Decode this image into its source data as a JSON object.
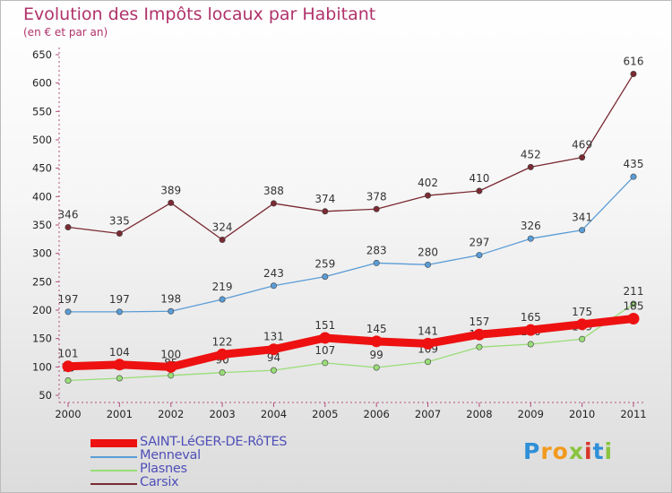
{
  "title": "Evolution des Impôts locaux par Habitant",
  "subtitle": "(en € et par an)",
  "logo": {
    "text": "Proxiti",
    "letters": [
      "P",
      "r",
      "o",
      "x",
      "i",
      "t",
      "i"
    ],
    "colors": [
      "#2f8fd8",
      "#f29a1e",
      "#f29a1e",
      "#8ac43f",
      "#d9352b",
      "#2f8fd8",
      "#8ac43f"
    ]
  },
  "chart_data": {
    "type": "line",
    "title": "Evolution des Impôts locaux par Habitant",
    "subtitle": "(en € et par an)",
    "xlabel": "",
    "ylabel": "",
    "ylim": [
      50,
      650
    ],
    "yticks": [
      50,
      100,
      150,
      200,
      250,
      300,
      350,
      400,
      450,
      500,
      550,
      600,
      650
    ],
    "categories": [
      "2000",
      "2001",
      "2002",
      "2003",
      "2004",
      "2005",
      "2006",
      "2007",
      "2008",
      "2009",
      "2010",
      "2011"
    ],
    "series": [
      {
        "name": "SAINT-LéGER-DE-RôTES",
        "color": "#ee1111",
        "thick": true,
        "labels": true,
        "values": [
          101,
          104,
          100,
          122,
          131,
          151,
          145,
          141,
          157,
          165,
          175,
          185
        ]
      },
      {
        "name": "Menneval",
        "color": "#5a9cd6",
        "thick": false,
        "labels": true,
        "values": [
          197,
          197,
          198,
          219,
          243,
          259,
          283,
          280,
          297,
          326,
          341,
          435
        ]
      },
      {
        "name": "Plasnes",
        "color": "#99dd77",
        "thick": false,
        "labels": true,
        "values": [
          76,
          80,
          85,
          90,
          94,
          107,
          99,
          109,
          135,
          140,
          149,
          211
        ]
      },
      {
        "name": "Carsix",
        "color": "#7a2a32",
        "thick": false,
        "labels": true,
        "values": [
          346,
          335,
          389,
          324,
          388,
          374,
          378,
          402,
          410,
          452,
          469,
          616
        ]
      }
    ]
  }
}
